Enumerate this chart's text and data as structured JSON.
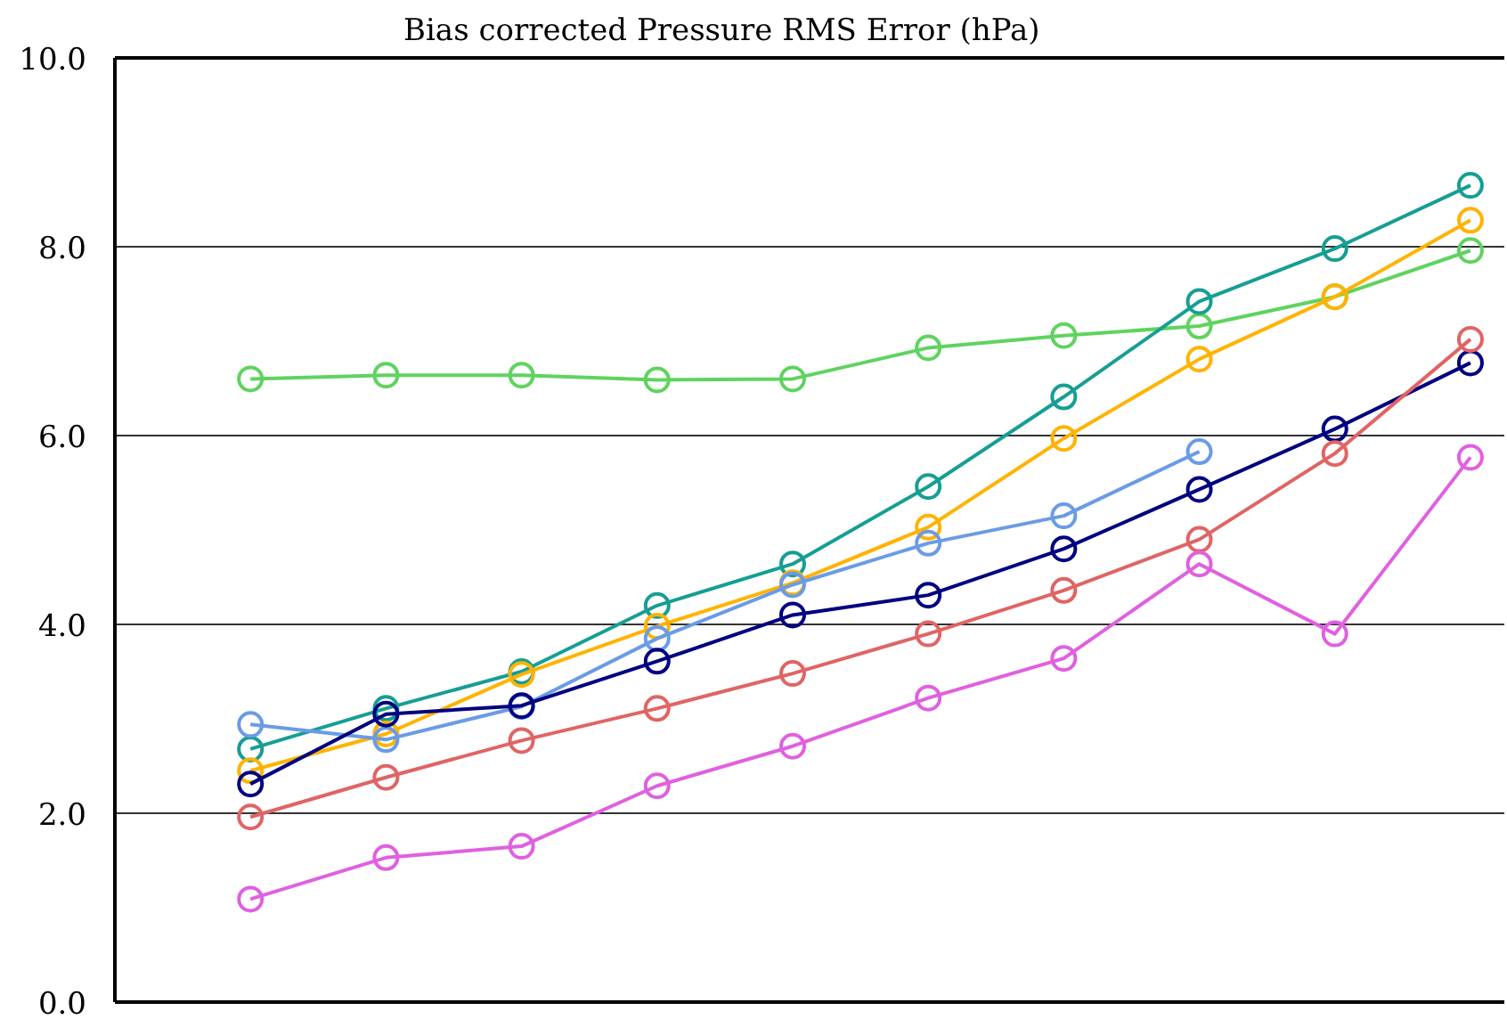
{
  "chart_data": {
    "type": "line",
    "title": "Bias corrected Pressure RMS Error (hPa)",
    "categories": [
      null,
      null,
      null,
      null,
      null,
      null,
      null,
      null,
      null,
      null
    ],
    "ylim": [
      0,
      10
    ],
    "yticks": [
      {
        "value": 0,
        "label": "0.0"
      },
      {
        "value": 2,
        "label": "2.0"
      },
      {
        "value": 4,
        "label": "4.0"
      },
      {
        "value": 6,
        "label": "6.0"
      },
      {
        "value": 8,
        "label": "8.0"
      },
      {
        "value": 10,
        "label": "10.0"
      }
    ],
    "grid": "y",
    "marker": "circle",
    "line_style": "solid",
    "tick_labels": "y",
    "series": [
      {
        "color": "#5fd35f",
        "values": [
          6.6,
          6.64,
          6.64,
          6.59,
          6.6,
          6.93,
          7.06,
          7.16,
          7.47,
          7.96
        ]
      },
      {
        "color": "#169e94",
        "values": [
          2.68,
          3.11,
          3.5,
          4.2,
          4.64,
          5.46,
          6.41,
          7.42,
          7.98,
          8.65
        ]
      },
      {
        "color": "#ffb300",
        "values": [
          2.45,
          2.84,
          3.47,
          3.98,
          4.44,
          5.03,
          5.97,
          6.81,
          7.47,
          8.28
        ]
      },
      {
        "color": "#6a9be6",
        "values": [
          2.94,
          2.78,
          3.13,
          3.85,
          4.42,
          4.86,
          5.15,
          5.83,
          null,
          null
        ]
      },
      {
        "color": "#000080",
        "values": [
          2.31,
          3.05,
          3.14,
          3.61,
          4.1,
          4.31,
          4.8,
          5.43,
          6.07,
          6.77
        ]
      },
      {
        "color": "#e06464",
        "values": [
          1.96,
          2.38,
          2.77,
          3.11,
          3.48,
          3.9,
          4.36,
          4.9,
          5.81,
          7.02
        ]
      },
      {
        "color": "#e060e0",
        "values": [
          1.09,
          1.53,
          1.65,
          2.29,
          2.71,
          3.22,
          3.64,
          4.64,
          3.9,
          5.77
        ]
      }
    ]
  }
}
